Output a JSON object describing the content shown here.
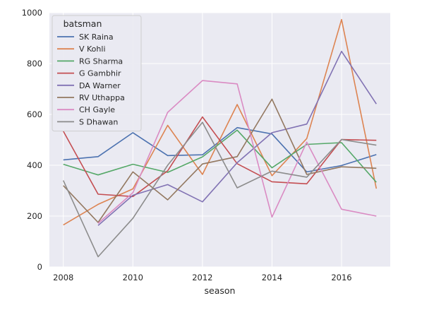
{
  "chart_data": {
    "type": "line",
    "xlabel": "season",
    "ylabel": "",
    "xlim": [
      2007.6,
      2017.4
    ],
    "ylim": [
      0,
      1000
    ],
    "xticks": [
      2008,
      2010,
      2012,
      2014,
      2016
    ],
    "yticks": [
      0,
      200,
      400,
      600,
      800,
      1000
    ],
    "grid": true,
    "legend_title": "batsman",
    "legend_position": "top-left",
    "x": [
      2008,
      2009,
      2010,
      2011,
      2012,
      2013,
      2014,
      2015,
      2016,
      2017
    ],
    "series": [
      {
        "name": "SK Raina",
        "color": "#4c72b0",
        "values": [
          421,
          434,
          528,
          438,
          441,
          548,
          523,
          374,
          399,
          442
        ]
      },
      {
        "name": "V Kohli",
        "color": "#dd8452",
        "values": [
          165,
          246,
          307,
          557,
          364,
          639,
          359,
          505,
          973,
          308
        ]
      },
      {
        "name": "RG Sharma",
        "color": "#55a868",
        "values": [
          404,
          362,
          404,
          372,
          433,
          538,
          390,
          482,
          489,
          333
        ]
      },
      {
        "name": "G Gambhir",
        "color": "#c44e52",
        "values": [
          534,
          286,
          277,
          378,
          590,
          406,
          335,
          327,
          501,
          498
        ]
      },
      {
        "name": "DA Warner",
        "color": "#8172b3",
        "values": [
          null,
          163,
          282,
          324,
          256,
          410,
          528,
          562,
          848,
          641
        ]
      },
      {
        "name": "RV Uthappa",
        "color": "#937860",
        "values": [
          320,
          175,
          374,
          264,
          405,
          434,
          660,
          364,
          394,
          388
        ]
      },
      {
        "name": "CH Gayle",
        "color": "#da8bc3",
        "values": [
          null,
          171,
          292,
          608,
          733,
          720,
          196,
          491,
          227,
          200
        ]
      },
      {
        "name": "S Dhawan",
        "color": "#8c8c8c",
        "values": [
          340,
          40,
          191,
          400,
          569,
          311,
          377,
          353,
          501,
          479
        ]
      }
    ]
  }
}
